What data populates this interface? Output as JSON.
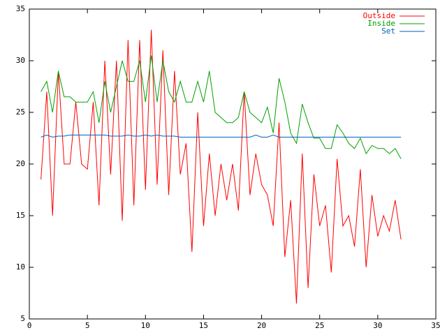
{
  "chart_data": {
    "type": "line",
    "x": [
      1,
      1.5,
      2,
      2.5,
      3,
      3.5,
      4,
      4.5,
      5,
      5.5,
      6,
      6.5,
      7,
      7.5,
      8,
      8.5,
      9,
      9.5,
      10,
      10.5,
      11,
      11.5,
      12,
      12.5,
      13,
      13.5,
      14,
      14.5,
      15,
      15.5,
      16,
      16.5,
      17,
      17.5,
      18,
      18.5,
      19,
      19.5,
      20,
      20.5,
      21,
      21.5,
      22,
      22.5,
      23,
      23.5,
      24,
      24.5,
      25,
      25.5,
      26,
      26.5,
      27,
      27.5,
      28,
      28.5,
      29,
      29.5,
      30,
      30.5,
      31,
      31.5,
      32
    ],
    "series": [
      {
        "name": "Outside",
        "color": "#ff0000",
        "values": [
          18.5,
          27,
          15,
          29,
          20,
          20,
          26,
          20,
          19.5,
          26,
          16,
          30,
          19,
          30,
          14.5,
          32,
          16,
          32,
          17.5,
          33,
          18,
          31,
          17,
          29,
          19,
          22,
          11.5,
          25,
          14,
          21,
          15,
          20,
          16.5,
          20,
          15.5,
          27,
          17,
          21,
          18,
          17,
          14,
          24,
          11,
          16.5,
          6.5,
          21,
          8,
          19,
          14,
          16,
          9.5,
          20.5,
          14,
          15,
          12,
          19.5,
          10,
          17,
          13,
          15,
          13.5,
          16.5,
          12.7
        ]
      },
      {
        "name": "Inside",
        "color": "#00a000",
        "values": [
          27,
          28,
          25,
          29,
          26.5,
          26.5,
          26,
          26,
          26,
          27,
          24,
          28,
          25,
          27.5,
          30,
          28,
          28,
          30,
          26,
          30.5,
          26,
          30,
          27,
          26,
          28,
          26,
          26,
          28,
          26,
          29,
          25,
          24.5,
          24,
          24,
          24.5,
          27,
          25,
          24.5,
          24,
          25.5,
          23,
          28.3,
          26,
          23,
          22,
          25.8,
          24,
          22.5,
          22.5,
          21.5,
          21.5,
          23.8,
          23,
          22,
          21.5,
          22.5,
          21,
          21.8,
          21.5,
          21.5,
          21,
          21.5,
          20.5
        ]
      },
      {
        "name": "Set",
        "color": "#0060c0",
        "values": [
          22.6,
          22.8,
          22.6,
          22.7,
          22.7,
          22.8,
          22.8,
          22.8,
          22.8,
          22.8,
          22.8,
          22.8,
          22.7,
          22.7,
          22.7,
          22.8,
          22.7,
          22.7,
          22.8,
          22.7,
          22.8,
          22.7,
          22.7,
          22.7,
          22.6,
          22.6,
          22.6,
          22.6,
          22.6,
          22.6,
          22.6,
          22.6,
          22.6,
          22.6,
          22.6,
          22.6,
          22.6,
          22.8,
          22.6,
          22.6,
          22.8,
          22.6,
          22.6,
          22.6,
          22.6,
          22.6,
          22.6,
          22.6,
          22.6,
          22.6,
          22.6,
          22.6,
          22.6,
          22.6,
          22.6,
          22.6,
          22.6,
          22.6,
          22.6,
          22.6,
          22.6,
          22.6,
          22.6
        ]
      }
    ],
    "xlim": [
      0,
      35
    ],
    "xticks": [
      0,
      5,
      10,
      15,
      20,
      25,
      30,
      35
    ],
    "ylim": [
      5,
      35
    ],
    "yticks": [
      5,
      10,
      15,
      20,
      25,
      30,
      35
    ],
    "grid": false,
    "legend": "top-right"
  }
}
